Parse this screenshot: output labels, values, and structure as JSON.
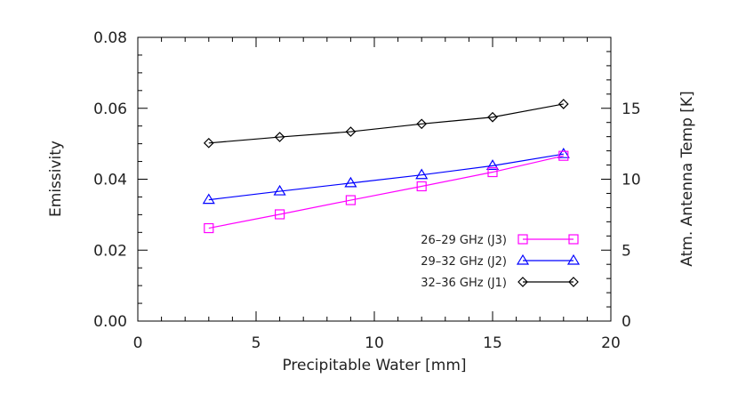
{
  "chart_data": {
    "type": "line",
    "title": "",
    "xlabel": "Precipitable Water [mm]",
    "ylabel": "Emissivity",
    "y2label": "Atm. Antenna Temp [K]",
    "xlim": [
      0,
      20
    ],
    "ylim": [
      0.0,
      0.08
    ],
    "y2lim": [
      0,
      20
    ],
    "xticks": [
      "0",
      "5",
      "10",
      "15",
      "20"
    ],
    "yticks": [
      "0.00",
      "0.02",
      "0.04",
      "0.06",
      "0.08"
    ],
    "y2ticks": [
      "0",
      "5",
      "10",
      "15"
    ],
    "grid": false,
    "legend_position": "bottom-right",
    "series": [
      {
        "name": "32–36 GHz (J1)",
        "marker": "diamond",
        "color": "#000000",
        "x": [
          3,
          6,
          9,
          12,
          15,
          18
        ],
        "y": [
          0.0502,
          0.0519,
          0.0534,
          0.0556,
          0.0575,
          0.0612
        ]
      },
      {
        "name": "29–32 GHz (J2)",
        "marker": "triangle",
        "color": "#0000ff",
        "x": [
          3,
          6,
          9,
          12,
          15,
          18
        ],
        "y": [
          0.0342,
          0.0366,
          0.0389,
          0.0412,
          0.0438,
          0.0471
        ]
      },
      {
        "name": "26–29 GHz (J3)",
        "marker": "square",
        "color": "#ff00ff",
        "x": [
          3,
          6,
          9,
          12,
          15,
          18
        ],
        "y": [
          0.0262,
          0.0301,
          0.0341,
          0.038,
          0.042,
          0.0466
        ]
      }
    ],
    "legend_order": [
      2,
      1,
      0
    ]
  }
}
